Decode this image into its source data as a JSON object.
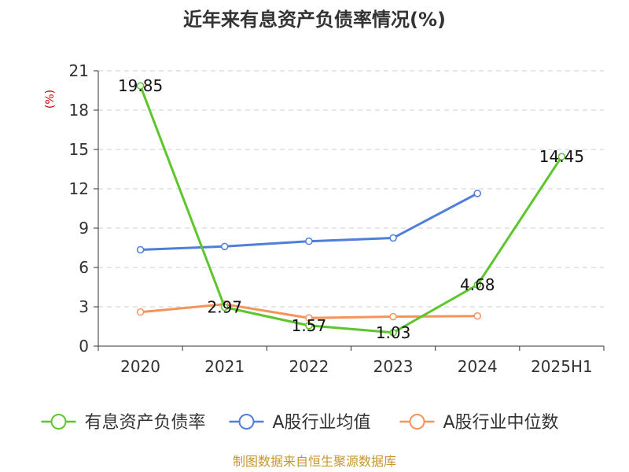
{
  "chart_data": {
    "type": "line",
    "title": "近年来有息资产负债率情况(%)",
    "ylabel": "(%)",
    "categories": [
      "2020",
      "2021",
      "2022",
      "2023",
      "2024",
      "2025H1"
    ],
    "yticks": [
      "0",
      "3",
      "6",
      "9",
      "12",
      "15",
      "18",
      "21"
    ],
    "ylim": [
      0,
      21
    ],
    "grid": true,
    "legend_position": "bottom",
    "series": [
      {
        "name": "有息资产负债率",
        "color": "#5cc62c",
        "values": [
          19.85,
          2.97,
          1.57,
          1.03,
          4.68,
          14.45
        ],
        "labels": [
          "19.85",
          "2.97",
          "1.57",
          "1.03",
          "4.68",
          "14.45"
        ]
      },
      {
        "name": "A股行业均值",
        "color": "#4f7fd8",
        "values": [
          7.35,
          7.6,
          8.0,
          8.25,
          11.65,
          null
        ]
      },
      {
        "name": "A股行业中位数",
        "color": "#f4935c",
        "values": [
          2.6,
          3.2,
          2.15,
          2.25,
          2.3,
          null
        ]
      }
    ]
  },
  "footer": {
    "source": "制图数据来自恒生聚源数据库"
  }
}
